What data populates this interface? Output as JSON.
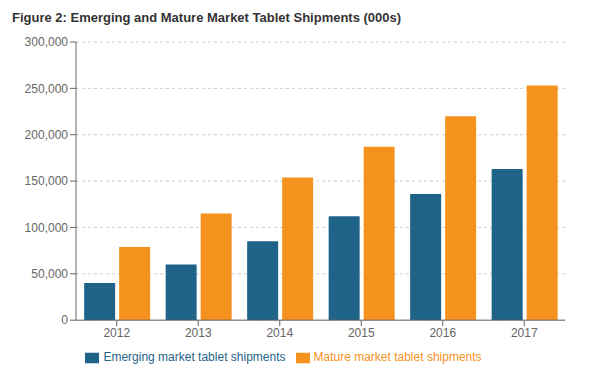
{
  "chart_data": {
    "type": "bar",
    "title": "Figure 2: Emerging and Mature Market Tablet Shipments (000s)",
    "categories": [
      "2012",
      "2013",
      "2014",
      "2015",
      "2016",
      "2017"
    ],
    "series": [
      {
        "name": "Emerging market tablet shipments",
        "color": "#1F6389",
        "values": [
          40000,
          60000,
          85000,
          112000,
          136000,
          163000
        ]
      },
      {
        "name": "Mature market tablet shipments",
        "color": "#F5921E",
        "values": [
          79000,
          115000,
          154000,
          187000,
          220000,
          253000
        ]
      }
    ],
    "ylim": [
      0,
      300000
    ],
    "yticks": [
      0,
      {
        "value": 50000,
        "label": "50,000"
      },
      {
        "value": 100000,
        "label": "100,000"
      },
      {
        "value": 150000,
        "label": "150,000"
      },
      {
        "value": 200000,
        "label": "200,000"
      },
      {
        "value": 250000,
        "label": "250,000"
      },
      {
        "value": 300000,
        "label": "300,000"
      }
    ],
    "grid": true,
    "legend": "bottom"
  }
}
